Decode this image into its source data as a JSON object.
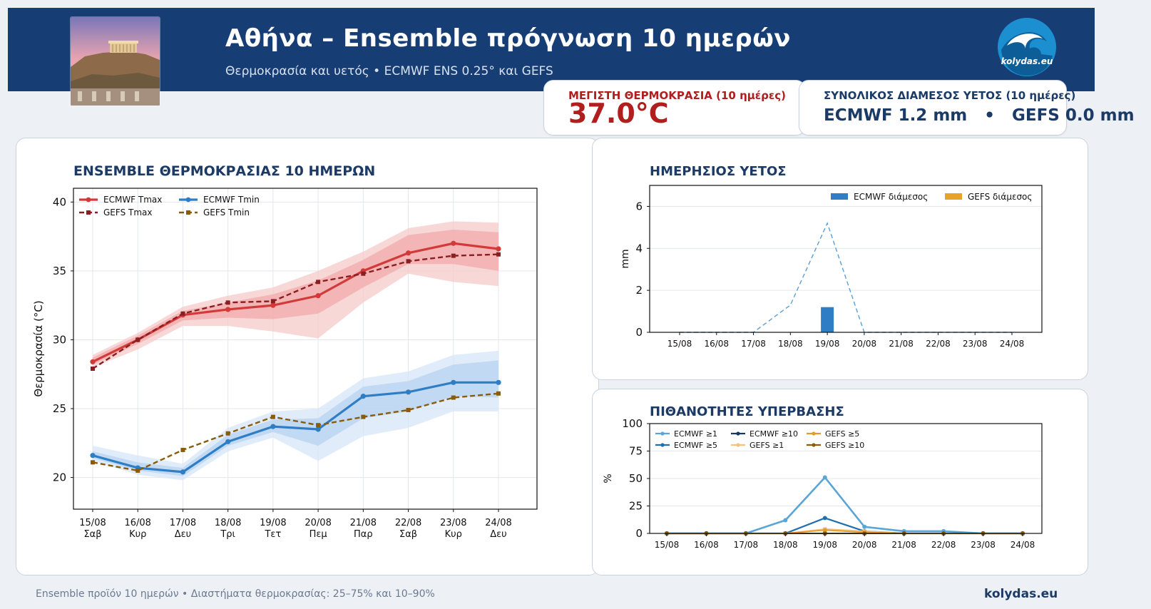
{
  "header": {
    "title": "Αθήνα – Ensemble πρόγνωση 10 ημερών",
    "subtitle": "Θερμοκρασία και υετός • ECMWF ENS 0.25° και GEFS",
    "logo_text": "kolydas.eu"
  },
  "kpi": {
    "max_label": "ΜΕΓΙΣΤΗ ΘΕΡΜΟΚΡΑΣΙΑ (10 ημέρες)",
    "max_value": "37.0°C",
    "precip_label": "ΣΥΝΟΛΙΚΟΣ ΔΙΑΜΕΣΟΣ ΥΕΤΟΣ (10 ημέρες)",
    "precip_value": "ECMWF 1.2 mm   •   GEFS 0.0 mm"
  },
  "footer": {
    "left": "Ensemble προϊόν 10 ημερών • Διαστήματα θερμοκρασίας: 25–75% και 10–90%",
    "right": "kolydas.eu"
  },
  "colors": {
    "header": "#173d75",
    "ecmwf_tmax": "#d23a3a",
    "gefs_tmax": "#8a1f22",
    "ecmwf_tmin": "#2f7dc4",
    "gefs_tmin": "#8a5c0a",
    "precip_ecmwf": "#2f7dc4",
    "precip_gefs": "#e8a22a"
  },
  "chart_data": [
    {
      "type": "line",
      "title": "ENSEMBLE ΘΕΡΜΟΚΡΑΣΙΑΣ 10 ΗΜΕΡΩΝ",
      "ylabel": "Θερμοκρασία (°C)",
      "x": [
        "15/08",
        "16/08",
        "17/08",
        "18/08",
        "19/08",
        "20/08",
        "21/08",
        "22/08",
        "23/08",
        "24/08"
      ],
      "x_days": [
        "Σαβ",
        "Κυρ",
        "Δευ",
        "Τρι",
        "Τετ",
        "Πεμ",
        "Παρ",
        "Σαβ",
        "Κυρ",
        "Δευ"
      ],
      "ylim": [
        17.7,
        41
      ],
      "yticks": [
        20,
        25,
        30,
        35,
        40
      ],
      "grid": true,
      "legend": "top-left",
      "series": [
        {
          "name": "ECMWF Tmax",
          "values": [
            28.4,
            30.0,
            31.8,
            32.2,
            32.5,
            33.2,
            35.0,
            36.3,
            37.0,
            36.6
          ],
          "band90": [
            [
              28.0,
              29.3,
              31.0,
              31.0,
              30.6,
              30.1,
              32.7,
              34.8,
              34.2,
              33.9
            ],
            [
              28.9,
              30.5,
              32.4,
              33.2,
              33.8,
              35.0,
              36.4,
              38.1,
              38.6,
              38.5
            ]
          ],
          "band75": [
            [
              28.2,
              29.7,
              31.4,
              31.6,
              31.5,
              31.9,
              33.8,
              35.5,
              35.5,
              35.0
            ],
            [
              28.7,
              30.3,
              32.1,
              32.7,
              33.3,
              34.3,
              35.8,
              37.6,
              38.0,
              37.8
            ]
          ]
        },
        {
          "name": "GEFS Tmax",
          "values": [
            27.9,
            30.0,
            31.9,
            32.7,
            32.8,
            34.2,
            34.8,
            35.7,
            36.1,
            36.2
          ]
        },
        {
          "name": "ECMWF Tmin",
          "values": [
            21.6,
            20.7,
            20.4,
            22.6,
            23.7,
            23.5,
            25.9,
            26.2,
            26.9,
            26.9
          ],
          "band90": [
            [
              21.2,
              20.2,
              19.8,
              21.9,
              22.9,
              21.2,
              23.0,
              23.6,
              24.8,
              24.8
            ],
            [
              22.3,
              21.6,
              21.0,
              23.6,
              24.8,
              25.0,
              27.2,
              27.7,
              28.9,
              29.2
            ]
          ],
          "band75": [
            [
              21.4,
              20.5,
              20.1,
              22.3,
              23.3,
              22.3,
              24.3,
              24.8,
              25.9,
              25.8
            ],
            [
              21.9,
              21.1,
              20.7,
              23.1,
              24.2,
              24.3,
              26.6,
              27.0,
              28.2,
              28.5
            ]
          ]
        },
        {
          "name": "GEFS Tmin",
          "values": [
            21.1,
            20.5,
            22.0,
            23.2,
            24.4,
            23.8,
            24.4,
            24.9,
            25.8,
            26.1
          ]
        }
      ]
    },
    {
      "type": "bar",
      "title": "ΗΜΕΡΗΣΙΟΣ ΥΕΤΟΣ",
      "ylabel": "mm",
      "categories": [
        "15/08",
        "16/08",
        "17/08",
        "18/08",
        "19/08",
        "20/08",
        "21/08",
        "22/08",
        "23/08",
        "24/08"
      ],
      "ylim": [
        0,
        7
      ],
      "yticks": [
        0,
        2,
        4,
        6
      ],
      "legend": "top-right",
      "series": [
        {
          "name": "ECMWF διάμεσος",
          "values": [
            0,
            0,
            0,
            0,
            1.2,
            0,
            0,
            0,
            0,
            0
          ]
        },
        {
          "name": "GEFS διάμεσος",
          "values": [
            0,
            0,
            0,
            0,
            0,
            0,
            0,
            0,
            0,
            0
          ]
        },
        {
          "values": [
            0,
            0,
            0,
            1.3,
            5.2,
            0,
            0,
            0,
            0,
            0
          ]
        }
      ]
    },
    {
      "type": "line",
      "title": "ΠΙΘΑΝΟΤΗΤΕΣ ΥΠΕΡΒΑΣΗΣ",
      "ylabel": "%",
      "x": [
        "15/08",
        "16/08",
        "17/08",
        "18/08",
        "19/08",
        "20/08",
        "21/08",
        "22/08",
        "23/08",
        "24/08"
      ],
      "ylim": [
        0,
        100
      ],
      "yticks": [
        0,
        25,
        50,
        75,
        100
      ],
      "legend": "top-left",
      "series": [
        {
          "name": "ECMWF ≥1",
          "values": [
            0,
            0,
            0,
            12,
            51,
            6,
            2,
            2,
            0,
            0
          ]
        },
        {
          "name": "ECMWF ≥5",
          "values": [
            0,
            0,
            0,
            0,
            14,
            2,
            0,
            0,
            0,
            0
          ]
        },
        {
          "name": "ECMWF ≥10",
          "values": [
            0,
            0,
            0,
            0,
            0,
            0,
            0,
            0,
            0,
            0
          ]
        },
        {
          "name": "GEFS ≥1",
          "values": [
            0,
            0,
            0,
            0,
            4,
            2,
            0,
            0,
            0,
            0
          ]
        },
        {
          "name": "GEFS ≥5",
          "values": [
            0,
            0,
            0,
            0,
            3,
            1,
            0,
            0,
            0,
            0
          ]
        },
        {
          "name": "GEFS ≥10",
          "values": [
            0,
            0,
            0,
            0,
            0,
            0,
            0,
            0,
            0,
            0
          ]
        }
      ]
    }
  ]
}
